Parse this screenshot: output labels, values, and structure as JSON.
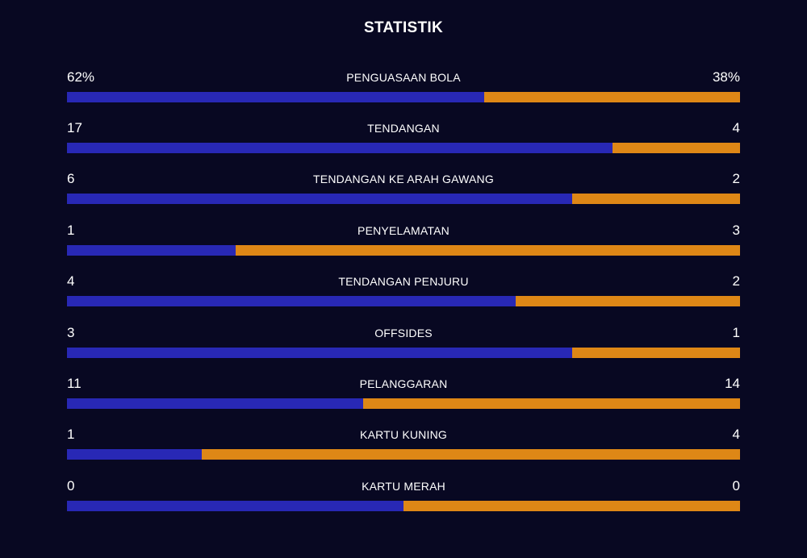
{
  "title": "STATISTIK",
  "colors": {
    "home": "#2828b5",
    "away": "#de8716",
    "background": "#080822",
    "text": "#ffffff"
  },
  "stats": [
    {
      "label": "PENGUASAAN BOLA",
      "home": "62%",
      "away": "38%",
      "home_share": 0.62
    },
    {
      "label": "TENDANGAN",
      "home": "17",
      "away": "4",
      "home_share": 0.81
    },
    {
      "label": "TENDANGAN KE ARAH GAWANG",
      "home": "6",
      "away": "2",
      "home_share": 0.75
    },
    {
      "label": "PENYELAMATAN",
      "home": "1",
      "away": "3",
      "home_share": 0.25
    },
    {
      "label": "TENDANGAN PENJURU",
      "home": "4",
      "away": "2",
      "home_share": 0.667
    },
    {
      "label": "OFFSIDES",
      "home": "3",
      "away": "1",
      "home_share": 0.75
    },
    {
      "label": "PELANGGARAN",
      "home": "11",
      "away": "14",
      "home_share": 0.44
    },
    {
      "label": "KARTU KUNING",
      "home": "1",
      "away": "4",
      "home_share": 0.2
    },
    {
      "label": "KARTU MERAH",
      "home": "0",
      "away": "0",
      "home_share": 0.5
    }
  ]
}
